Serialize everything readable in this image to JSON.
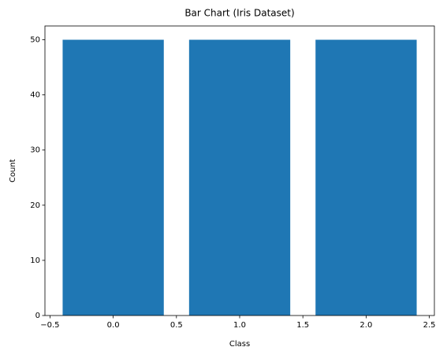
{
  "chart_data": {
    "type": "bar",
    "title": "Bar Chart (Iris Dataset)",
    "x_label": "Class",
    "y_label": "Count",
    "x": [
      0,
      1,
      2
    ],
    "values": [
      50,
      50,
      50
    ],
    "color": "#1f77b4",
    "bar_width": 0.8,
    "xlim": [
      -0.54,
      2.54
    ],
    "xticks": [
      {
        "value": -0.5,
        "label": "−0.5"
      },
      {
        "value": 0,
        "label": "0.0"
      },
      0.5,
      {
        "value": 1,
        "label": "1.0"
      },
      1.5,
      {
        "value": 2,
        "label": "2.0"
      },
      2.5
    ],
    "ylim": [
      0,
      52.5
    ],
    "yticks": [
      0,
      10,
      20,
      30,
      40,
      50
    ],
    "grid": false
  }
}
